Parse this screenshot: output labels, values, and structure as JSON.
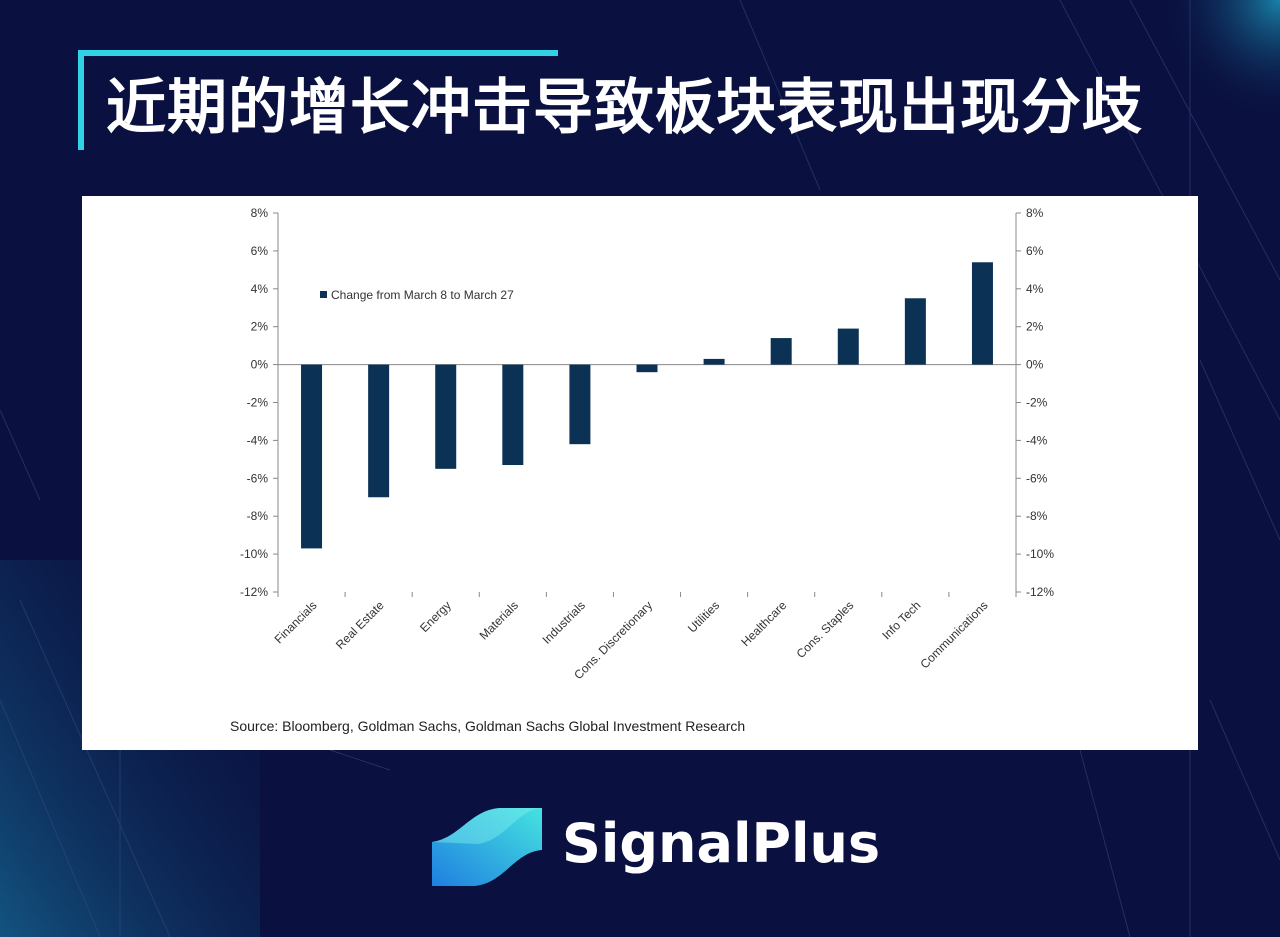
{
  "title": "近期的增长冲击导致板块表现出现分歧",
  "brand": {
    "name": "SignalPlus",
    "logo_icon": "signalplus-wave-logo-icon"
  },
  "colors": {
    "background": "#0a1140",
    "accent": "#2fd3e3",
    "bar": "#0b3154"
  },
  "chart_data": {
    "type": "bar",
    "title": "",
    "legend": "Change from March 8 to March 27",
    "legend_placement": "top-left",
    "categories": [
      "Financials",
      "Real Estate",
      "Energy",
      "Materials",
      "Industrials",
      "Cons. Discretionary",
      "Utilities",
      "Healthcare",
      "Cons. Staples",
      "Info Tech",
      "Communications"
    ],
    "series": [
      {
        "name": "Change from March 8 to March 27",
        "values": [
          -9.7,
          -7.0,
          -5.5,
          -5.3,
          -4.2,
          -0.4,
          0.3,
          1.4,
          1.9,
          3.5,
          5.4
        ]
      }
    ],
    "ylim": [
      -12,
      8
    ],
    "yticks": [
      "8%",
      "6%",
      "4%",
      "2%",
      "0%",
      "-2%",
      "-4%",
      "-6%",
      "-8%",
      "-10%",
      "-12%"
    ],
    "ytick_values": [
      8,
      6,
      4,
      2,
      0,
      -2,
      -4,
      -6,
      -8,
      -10,
      -12
    ],
    "dual_y_axis": true,
    "grid": false,
    "source": "Source: Bloomberg, Goldman Sachs, Goldman Sachs Global Investment Research"
  }
}
